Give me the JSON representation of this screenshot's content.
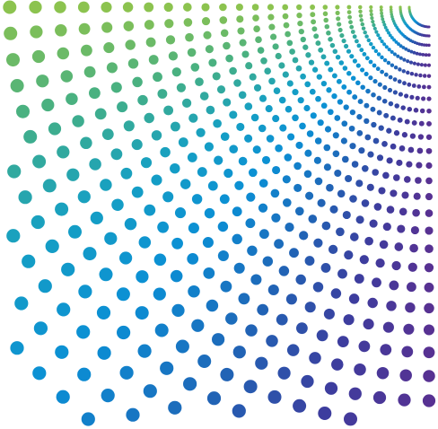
{
  "graphic": {
    "type": "radial-dot-burst",
    "background_color": "#ffffff",
    "palette": [
      "#8cc34f",
      "#47b082",
      "#16a0c3",
      "#0b8fd5",
      "#1f66b7",
      "#3c3e9e",
      "#573192"
    ]
  }
}
